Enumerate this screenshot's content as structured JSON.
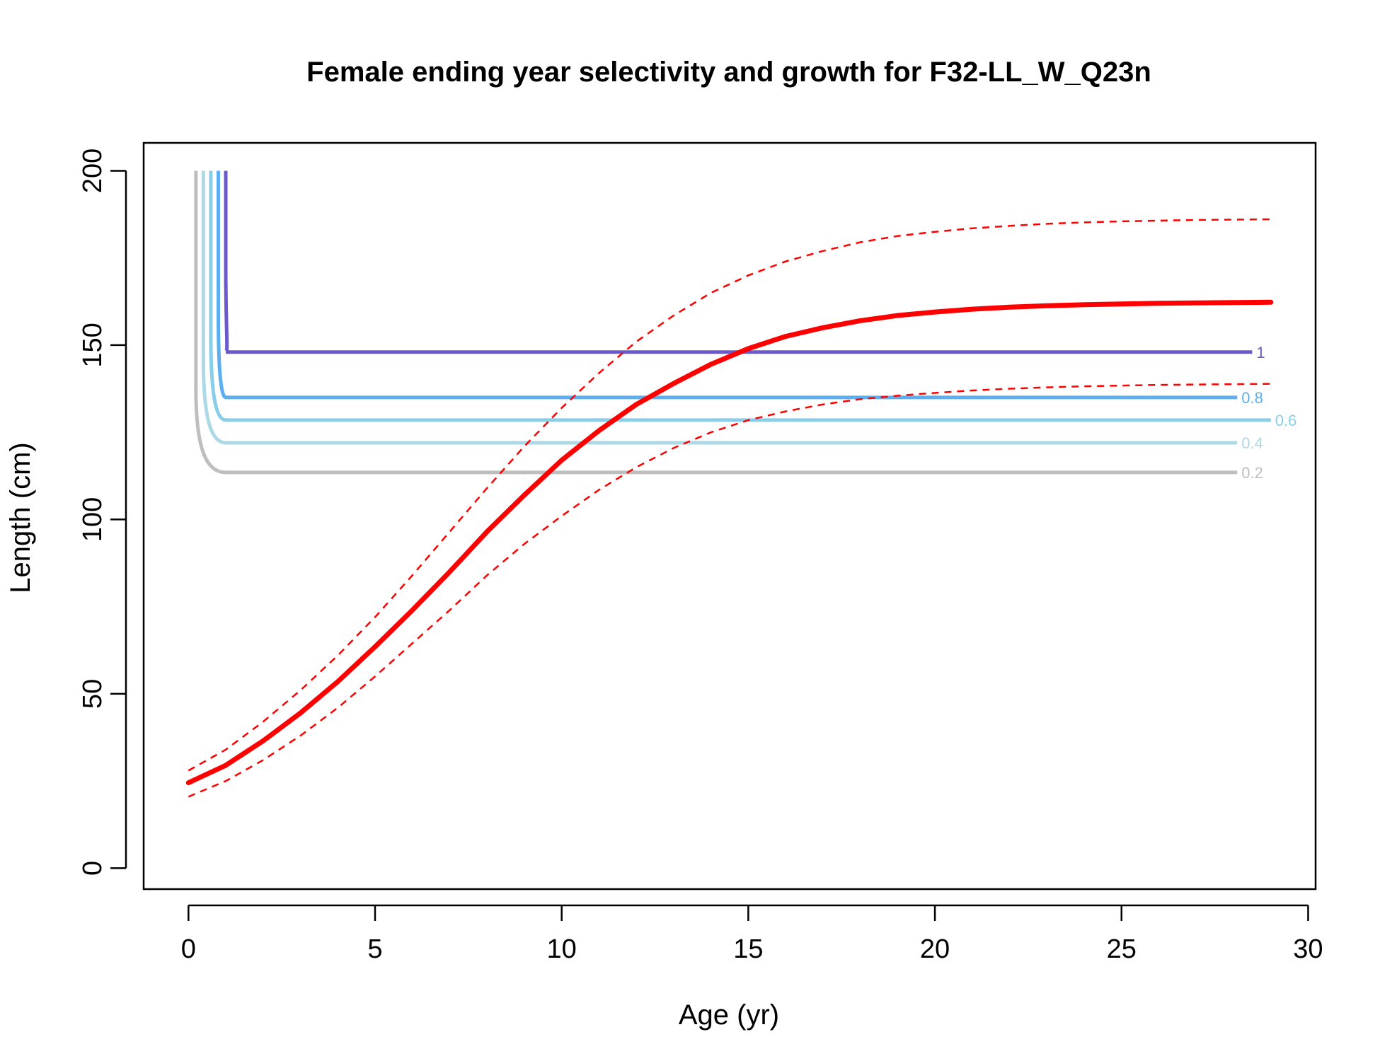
{
  "chart_data": {
    "type": "line",
    "title": "Female ending year selectivity and growth for F32-LL_W_Q23n",
    "xlabel": "Age (yr)",
    "ylabel": "Length (cm)",
    "xlim": [
      -1.2,
      30.2
    ],
    "ylim": [
      -6,
      208
    ],
    "xticks": [
      0,
      5,
      10,
      15,
      20,
      25,
      30
    ],
    "yticks": [
      0,
      50,
      100,
      150,
      200
    ],
    "grid": false,
    "legend": "none",
    "growth": {
      "color": "#FF0000",
      "age": [
        0,
        1,
        2,
        3,
        4,
        5,
        6,
        7,
        8,
        9,
        10,
        11,
        12,
        13,
        14,
        15,
        16,
        17,
        18,
        19,
        20,
        21,
        22,
        23,
        24,
        25,
        26,
        27,
        28,
        29
      ],
      "mean": [
        24.5,
        29.5,
        36.5,
        44.5,
        53.5,
        63.5,
        74,
        85,
        96.5,
        107,
        117,
        125.5,
        133,
        139,
        144.5,
        149,
        152.5,
        155,
        157,
        158.5,
        159.5,
        160.3,
        160.9,
        161.3,
        161.6,
        161.8,
        162,
        162.1,
        162.2,
        162.3
      ],
      "upper": [
        28,
        34,
        42,
        51,
        61,
        72,
        84,
        96.5,
        109,
        121,
        132,
        142,
        151,
        158.5,
        165,
        170,
        174,
        177,
        179.5,
        181.3,
        182.5,
        183.5,
        184.2,
        184.8,
        185.2,
        185.5,
        185.7,
        185.9,
        186,
        186.1
      ],
      "lower": [
        20.5,
        25,
        31,
        38,
        46,
        55,
        64.5,
        74,
        84,
        93,
        101,
        108.5,
        115,
        120.5,
        125,
        128.5,
        131,
        133,
        134.5,
        135.5,
        136.3,
        137,
        137.5,
        137.9,
        138.2,
        138.4,
        138.6,
        138.7,
        138.8,
        138.9
      ]
    },
    "selectivity_contours": [
      {
        "level": "1",
        "length": 148,
        "x_start": 1.0,
        "x_end": 28.5,
        "color": "#6A5ACD"
      },
      {
        "level": "0.8",
        "length": 135,
        "x_start": 0.8,
        "x_end": 28.1,
        "color": "#5BAEF0"
      },
      {
        "level": "0.6",
        "length": 128.5,
        "x_start": 0.6,
        "x_end": 29.0,
        "color": "#87CEEB"
      },
      {
        "level": "0.4",
        "length": 122,
        "x_start": 0.4,
        "x_end": 28.1,
        "color": "#ADD8E6"
      },
      {
        "level": "0.2",
        "length": 113.5,
        "x_start": 0.2,
        "x_end": 28.1,
        "color": "#BEBEBE"
      }
    ]
  }
}
